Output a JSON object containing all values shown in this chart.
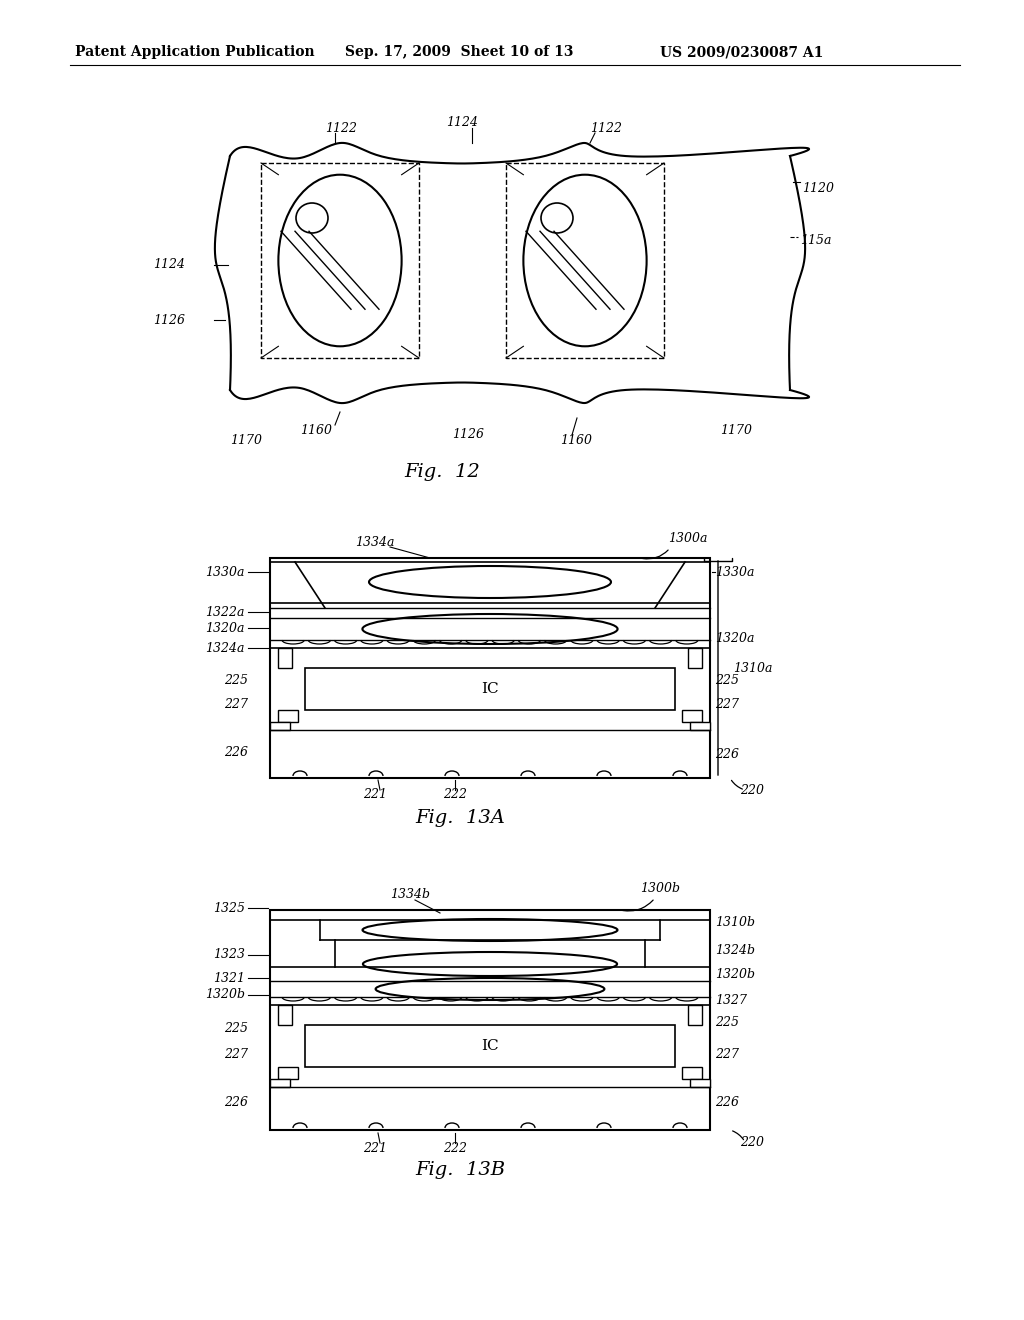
{
  "header_left": "Patent Application Publication",
  "header_mid": "Sep. 17, 2009  Sheet 10 of 13",
  "header_right": "US 2009/0230087 A1",
  "bg_color": "#ffffff",
  "line_color": "#000000"
}
